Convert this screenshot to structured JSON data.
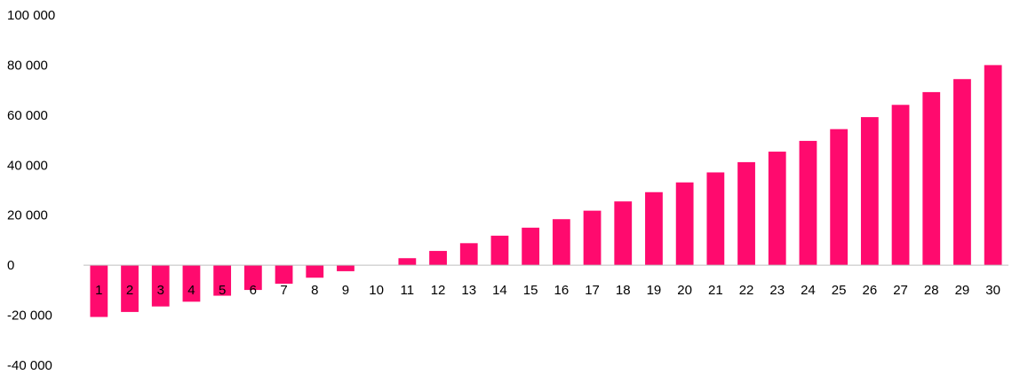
{
  "chart_data": {
    "type": "bar",
    "title": "",
    "xlabel": "",
    "ylabel": "",
    "ylim": [
      -40000,
      100000
    ],
    "yticks": [
      100000,
      80000,
      60000,
      40000,
      20000,
      0,
      -20000,
      -40000
    ],
    "ytick_labels": [
      "100 000",
      "80 000",
      "60 000",
      "40 000",
      "20 000",
      "0",
      "-20 000",
      "-40 000"
    ],
    "categories": [
      "1",
      "2",
      "3",
      "4",
      "5",
      "6",
      "7",
      "8",
      "9",
      "10",
      "11",
      "12",
      "13",
      "14",
      "15",
      "16",
      "17",
      "18",
      "19",
      "20",
      "21",
      "22",
      "23",
      "24",
      "25",
      "26",
      "27",
      "28",
      "29",
      "30"
    ],
    "values": [
      -20700,
      -18700,
      -16500,
      -14600,
      -12200,
      -9900,
      -7400,
      -5000,
      -2400,
      0,
      2800,
      5700,
      8800,
      11800,
      15000,
      18400,
      21800,
      25500,
      29200,
      33100,
      37100,
      41200,
      45400,
      49700,
      54400,
      59200,
      64100,
      69200,
      74400,
      80000
    ],
    "grid": false,
    "legend": "none",
    "colors": {
      "bar": "#FF0A6E",
      "axis": "#BFBFBF",
      "text": "#000000"
    }
  }
}
